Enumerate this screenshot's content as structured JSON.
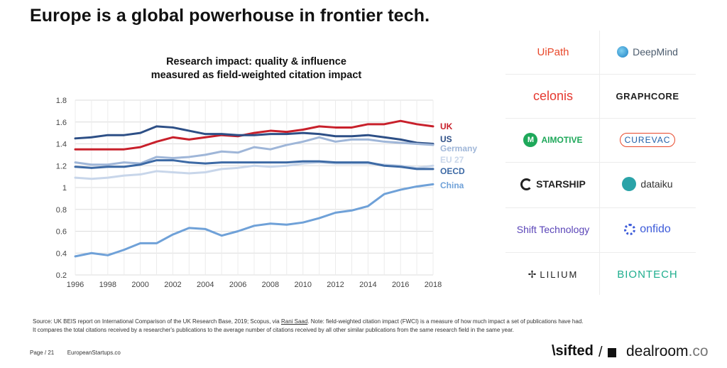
{
  "page_title": "Europe is a global powerhouse in frontier tech.",
  "chart_data": {
    "type": "line",
    "title_line1": "Research impact: quality & influence",
    "title_line2": "measured as field-weighted citation impact",
    "xlabel": "",
    "ylabel": "",
    "x": [
      1996,
      1997,
      1998,
      1999,
      2000,
      2001,
      2002,
      2003,
      2004,
      2005,
      2006,
      2007,
      2008,
      2009,
      2010,
      2011,
      2012,
      2013,
      2014,
      2015,
      2016,
      2017,
      2018
    ],
    "x_ticks": [
      "1996",
      "1998",
      "2000",
      "2002",
      "2004",
      "2006",
      "2008",
      "2010",
      "2012",
      "2014",
      "2016",
      "2018"
    ],
    "y_ticks": [
      "0.2",
      "0.4",
      "0.6",
      "0.8",
      "1",
      "1.2",
      "1.4",
      "1.6",
      "1.8"
    ],
    "ylim": [
      0.2,
      1.8
    ],
    "grid": true,
    "legend": "end-labels",
    "series": [
      {
        "name": "UK",
        "color": "#c8202b",
        "values": [
          1.35,
          1.35,
          1.35,
          1.35,
          1.37,
          1.42,
          1.46,
          1.44,
          1.46,
          1.48,
          1.47,
          1.5,
          1.52,
          1.51,
          1.53,
          1.56,
          1.55,
          1.55,
          1.58,
          1.58,
          1.61,
          1.58,
          1.56
        ]
      },
      {
        "name": "US",
        "color": "#2d4f86",
        "values": [
          1.45,
          1.46,
          1.48,
          1.48,
          1.5,
          1.56,
          1.55,
          1.52,
          1.49,
          1.49,
          1.48,
          1.48,
          1.49,
          1.49,
          1.5,
          1.49,
          1.47,
          1.47,
          1.48,
          1.46,
          1.44,
          1.41,
          1.4
        ]
      },
      {
        "name": "Germany",
        "color": "#9fb6d8",
        "values": [
          1.23,
          1.21,
          1.21,
          1.23,
          1.22,
          1.28,
          1.27,
          1.28,
          1.3,
          1.33,
          1.32,
          1.37,
          1.35,
          1.39,
          1.42,
          1.46,
          1.42,
          1.44,
          1.44,
          1.42,
          1.41,
          1.4,
          1.39
        ]
      },
      {
        "name": "EU 27",
        "color": "#c8d6ea",
        "values": [
          1.09,
          1.08,
          1.09,
          1.11,
          1.12,
          1.15,
          1.14,
          1.13,
          1.14,
          1.17,
          1.18,
          1.2,
          1.19,
          1.2,
          1.22,
          1.23,
          1.22,
          1.22,
          1.22,
          1.21,
          1.2,
          1.18,
          1.2
        ]
      },
      {
        "name": "OECD",
        "color": "#3d6aa5",
        "values": [
          1.19,
          1.18,
          1.19,
          1.19,
          1.21,
          1.25,
          1.25,
          1.23,
          1.22,
          1.23,
          1.23,
          1.23,
          1.23,
          1.23,
          1.24,
          1.24,
          1.23,
          1.23,
          1.23,
          1.2,
          1.19,
          1.17,
          1.17
        ]
      },
      {
        "name": "China",
        "color": "#6fa1d8",
        "values": [
          0.37,
          0.4,
          0.38,
          0.43,
          0.49,
          0.49,
          0.57,
          0.63,
          0.62,
          0.56,
          0.6,
          0.65,
          0.67,
          0.66,
          0.68,
          0.72,
          0.77,
          0.79,
          0.83,
          0.94,
          0.98,
          1.01,
          1.03
        ]
      }
    ]
  },
  "logos": [
    {
      "label": "UiPath",
      "color": "#e8482b"
    },
    {
      "label": "DeepMind",
      "color": "#4c5c6e"
    },
    {
      "label": "celonis",
      "color": "#e5382f"
    },
    {
      "label": "GRAPHCORE",
      "color": "#222222"
    },
    {
      "label": "AIMOTIVE",
      "color": "#1ea85a"
    },
    {
      "label": "CUREVAC",
      "color": "#1f5fa8"
    },
    {
      "label": "STARSHIP",
      "color": "#222222"
    },
    {
      "label": "dataiku",
      "color": "#2aa3a8"
    },
    {
      "label": "Shift Technology",
      "color": "#5a45b8"
    },
    {
      "label": "onfido",
      "color": "#3d5bd9"
    },
    {
      "label": "LILIUM",
      "color": "#222222"
    },
    {
      "label": "BIONTECH",
      "color": "#1fae8e"
    }
  ],
  "source": {
    "prefix": "Source: UK BEIS report on International Comparison of the UK Research Base, 2019; Scopus, via ",
    "link": "Rani Saad",
    "suffix": ". Note: field-weighted citation impact (FWCI) is a measure of how much impact a set of publications have had.",
    "line2": "It compares the total citations received by a researcher's publications to the average number of citations received by all other similar publications from the same research field in the same year."
  },
  "footer": {
    "page": "Page / 21",
    "site": "EuropeanStartups.co",
    "brand1": "\\sifted",
    "brand2": "dealroom",
    "brand2_suffix": ".co"
  }
}
